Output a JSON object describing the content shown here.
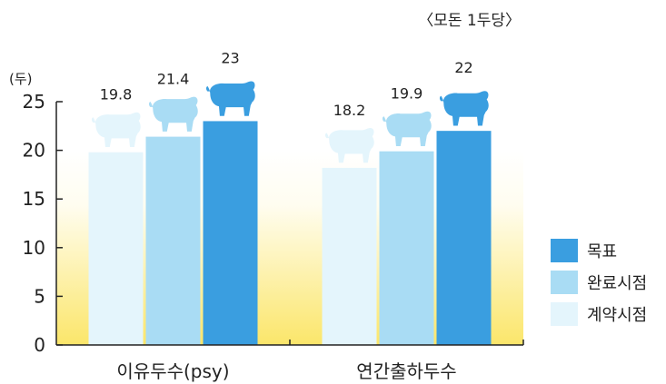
{
  "unit_note": "〈모돈 1두당〉",
  "colors": {
    "target": "#3a9ee0",
    "completion": "#a9dcf4",
    "contract": "#e4f5fc",
    "background_warm": "#fbe66a",
    "axis": "#222222"
  },
  "chart_data": {
    "type": "bar",
    "ylabel": "(두)",
    "ylim": [
      0,
      25
    ],
    "yticks": [
      0,
      5,
      10,
      15,
      20,
      25
    ],
    "categories": [
      "이유두수(psy)",
      "연간출하두수"
    ],
    "series": [
      {
        "name": "계약시점",
        "values": [
          19.8,
          18.2
        ],
        "labels": [
          "19.8",
          "18.2"
        ]
      },
      {
        "name": "완료시점",
        "values": [
          21.4,
          19.9
        ],
        "labels": [
          "21.4",
          "19.9"
        ]
      },
      {
        "name": "목표",
        "values": [
          23,
          22
        ],
        "labels": [
          "23",
          "22"
        ]
      }
    ],
    "legend": {
      "placement": "right",
      "order": [
        "목표",
        "완료시점",
        "계약시점"
      ]
    }
  }
}
